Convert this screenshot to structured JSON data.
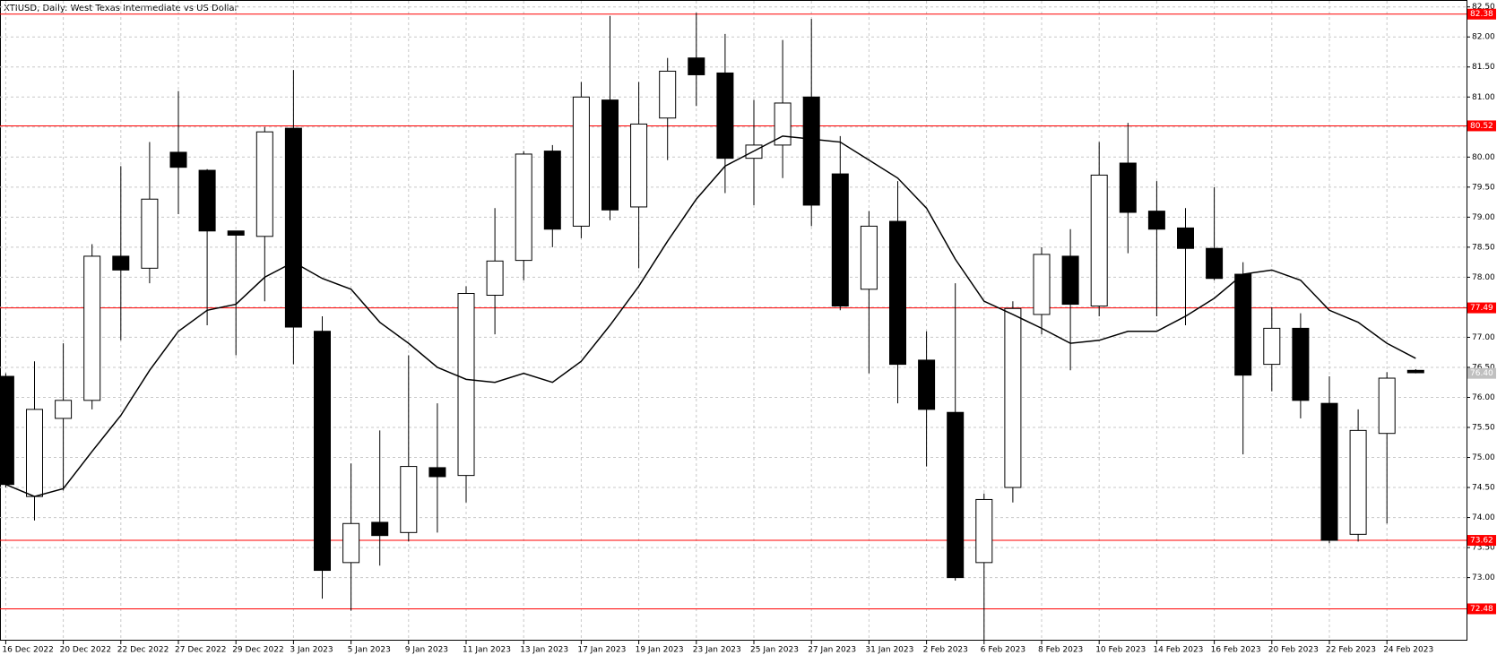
{
  "chart_data": {
    "type": "candlestick",
    "title": "XTIUSD, Daily:  West Texas Intermediate vs US Dollar",
    "categories": [
      "16 Dec 2022",
      null,
      "20 Dec 2022",
      null,
      "22 Dec 2022",
      null,
      "27 Dec 2022",
      null,
      "29 Dec 2022",
      null,
      "3 Jan 2023",
      null,
      "5 Jan 2023",
      null,
      "9 Jan 2023",
      null,
      "11 Jan 2023",
      null,
      "13 Jan 2023",
      null,
      "17 Jan 2023",
      null,
      "19 Jan 2023",
      null,
      "23 Jan 2023",
      null,
      "25 Jan 2023",
      null,
      "27 Jan 2023",
      null,
      "31 Jan 2023",
      null,
      "2 Feb 2023",
      null,
      "6 Feb 2023",
      null,
      "8 Feb 2023",
      null,
      "10 Feb 2023",
      null,
      "14 Feb 2023",
      null,
      "16 Feb 2023",
      null,
      "20 Feb 2023",
      null,
      "22 Feb 2023",
      null,
      "24 Feb 2023",
      null
    ],
    "open": [
      76.35,
      74.35,
      75.65,
      75.95,
      78.35,
      78.15,
      80.08,
      79.78,
      78.77,
      78.68,
      80.48,
      77.1,
      73.25,
      73.92,
      73.75,
      74.83,
      74.7,
      77.7,
      78.28,
      80.1,
      78.85,
      80.95,
      79.17,
      80.65,
      81.65,
      81.4,
      79.98,
      80.2,
      81.0,
      79.72,
      77.8,
      78.93,
      76.62,
      75.75,
      73.25,
      74.5,
      77.38,
      78.35,
      77.52,
      79.9,
      79.1,
      78.82,
      78.48,
      78.05,
      76.55,
      77.15,
      75.9,
      73.72,
      75.4,
      76.45
    ],
    "high": [
      76.4,
      76.6,
      76.9,
      78.55,
      79.85,
      80.25,
      81.1,
      79.8,
      78.75,
      80.5,
      81.45,
      77.35,
      74.9,
      75.45,
      76.7,
      75.9,
      77.85,
      79.15,
      80.1,
      80.2,
      81.25,
      82.35,
      81.25,
      81.65,
      82.4,
      82.05,
      80.95,
      81.95,
      82.3,
      80.35,
      79.1,
      79.6,
      77.1,
      77.9,
      74.4,
      77.6,
      78.5,
      78.8,
      80.25,
      80.57,
      79.6,
      79.15,
      79.5,
      78.25,
      77.5,
      77.4,
      76.35,
      75.8,
      76.42,
      76.47
    ],
    "low": [
      74.5,
      73.95,
      74.45,
      75.8,
      76.95,
      77.9,
      79.05,
      77.2,
      76.7,
      77.6,
      76.55,
      72.65,
      72.45,
      73.2,
      73.6,
      73.75,
      74.25,
      77.05,
      77.95,
      78.5,
      78.65,
      78.95,
      78.15,
      79.95,
      80.85,
      79.4,
      79.2,
      79.65,
      78.85,
      77.45,
      76.4,
      75.9,
      74.85,
      72.95,
      71.95,
      74.25,
      77.05,
      76.45,
      77.35,
      78.4,
      77.35,
      77.2,
      77.95,
      75.05,
      76.1,
      75.65,
      73.57,
      73.6,
      73.9,
      76.4
    ],
    "close": [
      74.55,
      75.8,
      75.95,
      78.35,
      78.12,
      79.3,
      79.83,
      78.77,
      78.7,
      80.42,
      77.17,
      73.12,
      73.9,
      73.7,
      74.85,
      74.68,
      77.73,
      78.27,
      80.05,
      78.8,
      81.0,
      79.12,
      80.55,
      81.43,
      81.37,
      79.98,
      80.2,
      80.9,
      79.2,
      77.52,
      78.85,
      76.55,
      75.8,
      73.0,
      74.3,
      77.48,
      78.38,
      77.55,
      79.7,
      79.08,
      78.8,
      78.48,
      77.98,
      76.37,
      77.15,
      75.95,
      73.62,
      75.45,
      76.32,
      76.41
    ],
    "up_color": "#ffffff",
    "down_color": "#000000",
    "ma": {
      "color": "#000000",
      "values": [
        74.55,
        74.35,
        74.48,
        75.1,
        75.7,
        76.45,
        77.1,
        77.45,
        77.55,
        78.0,
        78.25,
        77.98,
        77.8,
        77.25,
        76.9,
        76.5,
        76.3,
        76.25,
        76.4,
        76.25,
        76.6,
        77.2,
        77.85,
        78.6,
        79.3,
        79.85,
        80.1,
        80.35,
        80.3,
        80.25,
        79.95,
        79.65,
        79.15,
        78.3,
        77.6,
        77.38,
        77.15,
        76.9,
        76.95,
        77.1,
        77.1,
        77.35,
        77.65,
        78.05,
        78.12,
        77.95,
        77.45,
        77.25,
        76.9,
        76.65
      ]
    },
    "levels": {
      "color": "#ff0000",
      "values": [
        82.38,
        80.52,
        77.49,
        73.62,
        72.48
      ]
    },
    "last_price": {
      "value": 76.4,
      "label": "76.40"
    },
    "ylim": [
      71.95,
      82.6
    ],
    "yticks": [
      {
        "value": 73,
        "label": "73.00"
      },
      {
        "value": 73.5,
        "label": "73.50"
      },
      {
        "value": 74,
        "label": "74.00"
      },
      {
        "value": 74.5,
        "label": "74.50"
      },
      {
        "value": 75,
        "label": "75.00"
      },
      {
        "value": 75.5,
        "label": "75.50"
      },
      {
        "value": 76,
        "label": "76.00"
      },
      {
        "value": 76.5,
        "label": "76.50"
      },
      {
        "value": 77,
        "label": "77.00"
      },
      {
        "value": 77.5,
        "label": "77.50"
      },
      {
        "value": 78,
        "label": "78.00"
      },
      {
        "value": 78.5,
        "label": "78.50"
      },
      {
        "value": 79,
        "label": "79.00"
      },
      {
        "value": 79.5,
        "label": "79.50"
      },
      {
        "value": 80,
        "label": "80.00"
      },
      {
        "value": 80.5,
        "label": "80.50"
      },
      {
        "value": 81,
        "label": "81.00"
      },
      {
        "value": 81.5,
        "label": "81.50"
      },
      {
        "value": 82,
        "label": "82.00"
      },
      {
        "value": 82.5,
        "label": "82.50"
      }
    ],
    "grid": true
  }
}
